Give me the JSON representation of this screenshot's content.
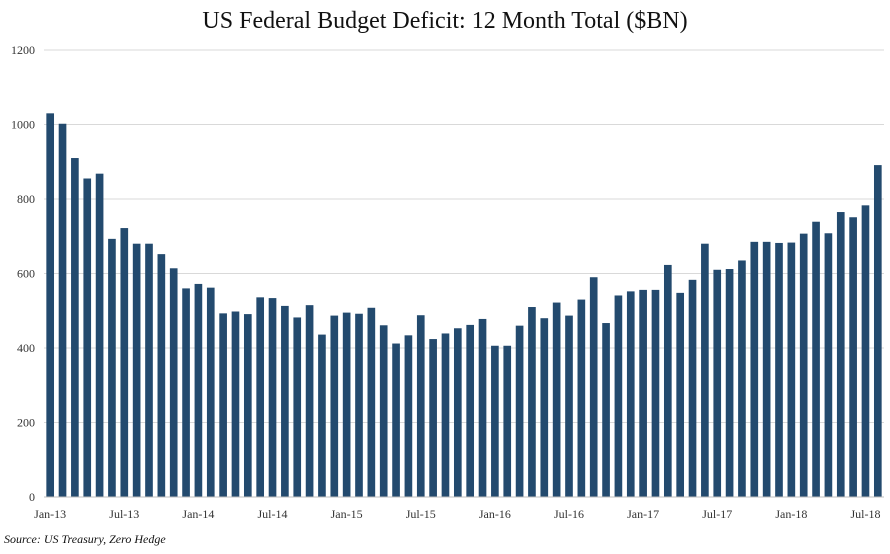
{
  "chart_data": {
    "type": "bar",
    "title": "US Federal Budget Deficit: 12 Month Total ($BN)",
    "source": "Source: US Treasury, Zero Hedge",
    "xlabel": "",
    "ylabel": "",
    "ylim": [
      0,
      1200
    ],
    "yticks": [
      0,
      200,
      400,
      600,
      800,
      1000,
      1200
    ],
    "grid": true,
    "legend": "none",
    "bar_color": "#234a6e",
    "x_tick_labels": [
      {
        "index": 0,
        "label": "Jan-13"
      },
      {
        "index": 6,
        "label": "Jul-13"
      },
      {
        "index": 12,
        "label": "Jan-14"
      },
      {
        "index": 18,
        "label": "Jul-14"
      },
      {
        "index": 24,
        "label": "Jan-15"
      },
      {
        "index": 30,
        "label": "Jul-15"
      },
      {
        "index": 36,
        "label": "Jan-16"
      },
      {
        "index": 42,
        "label": "Jul-16"
      },
      {
        "index": 48,
        "label": "Jan-17"
      },
      {
        "index": 54,
        "label": "Jul-17"
      },
      {
        "index": 60,
        "label": "Jan-18"
      },
      {
        "index": 66,
        "label": "Jul-18"
      }
    ],
    "categories": [
      "Jan-13",
      "Feb-13",
      "Mar-13",
      "Apr-13",
      "May-13",
      "Jun-13",
      "Jul-13",
      "Aug-13",
      "Sep-13",
      "Oct-13",
      "Nov-13",
      "Dec-13",
      "Jan-14",
      "Feb-14",
      "Mar-14",
      "Apr-14",
      "May-14",
      "Jun-14",
      "Jul-14",
      "Aug-14",
      "Sep-14",
      "Oct-14",
      "Nov-14",
      "Dec-14",
      "Jan-15",
      "Feb-15",
      "Mar-15",
      "Apr-15",
      "May-15",
      "Jun-15",
      "Jul-15",
      "Aug-15",
      "Sep-15",
      "Oct-15",
      "Nov-15",
      "Dec-15",
      "Jan-16",
      "Feb-16",
      "Mar-16",
      "Apr-16",
      "May-16",
      "Jun-16",
      "Jul-16",
      "Aug-16",
      "Sep-16",
      "Oct-16",
      "Nov-16",
      "Dec-16",
      "Jan-17",
      "Feb-17",
      "Mar-17",
      "Apr-17",
      "May-17",
      "Jun-17",
      "Jul-17",
      "Aug-17",
      "Sep-17",
      "Oct-17",
      "Nov-17",
      "Dec-17",
      "Jan-18",
      "Feb-18",
      "Mar-18",
      "Apr-18",
      "May-18",
      "Jun-18",
      "Jul-18",
      "Aug-18"
    ],
    "values": [
      1030,
      1002,
      910,
      855,
      868,
      693,
      722,
      680,
      680,
      652,
      614,
      560,
      572,
      562,
      493,
      498,
      491,
      536,
      534,
      513,
      482,
      515,
      436,
      487,
      495,
      492,
      508,
      461,
      412,
      434,
      488,
      424,
      439,
      453,
      462,
      478,
      406,
      406,
      460,
      510,
      480,
      522,
      487,
      530,
      590,
      467,
      541,
      552,
      556,
      556,
      623,
      548,
      583,
      680,
      610,
      612,
      635,
      685,
      685,
      682,
      683,
      707,
      739,
      708,
      765,
      751,
      783,
      891
    ]
  }
}
